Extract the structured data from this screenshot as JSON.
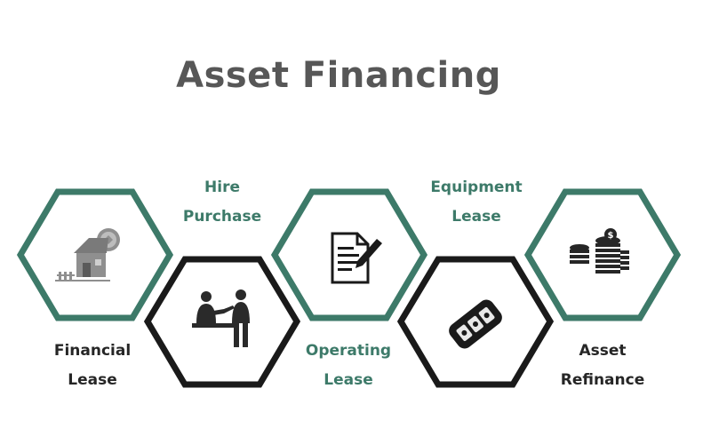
{
  "title": "Asset Financing",
  "colors": {
    "green": "#3d7a69",
    "dark": "#1a1a1a",
    "title": "#575757"
  },
  "steps": [
    {
      "lines": [
        "Financial",
        "Lease"
      ],
      "icon": "house-icon",
      "frame": "green"
    },
    {
      "lines": [
        "Hire",
        "Purchase"
      ],
      "icon": "handshake-people-icon",
      "frame": "dark"
    },
    {
      "lines": [
        "Operating",
        "Lease"
      ],
      "icon": "document-pen-icon",
      "frame": "green"
    },
    {
      "lines": [
        "Equipment",
        "Lease"
      ],
      "icon": "key-fob-icon",
      "frame": "dark"
    },
    {
      "lines": [
        "Asset",
        "Refinance"
      ],
      "icon": "coin-stack-icon",
      "frame": "green"
    }
  ]
}
